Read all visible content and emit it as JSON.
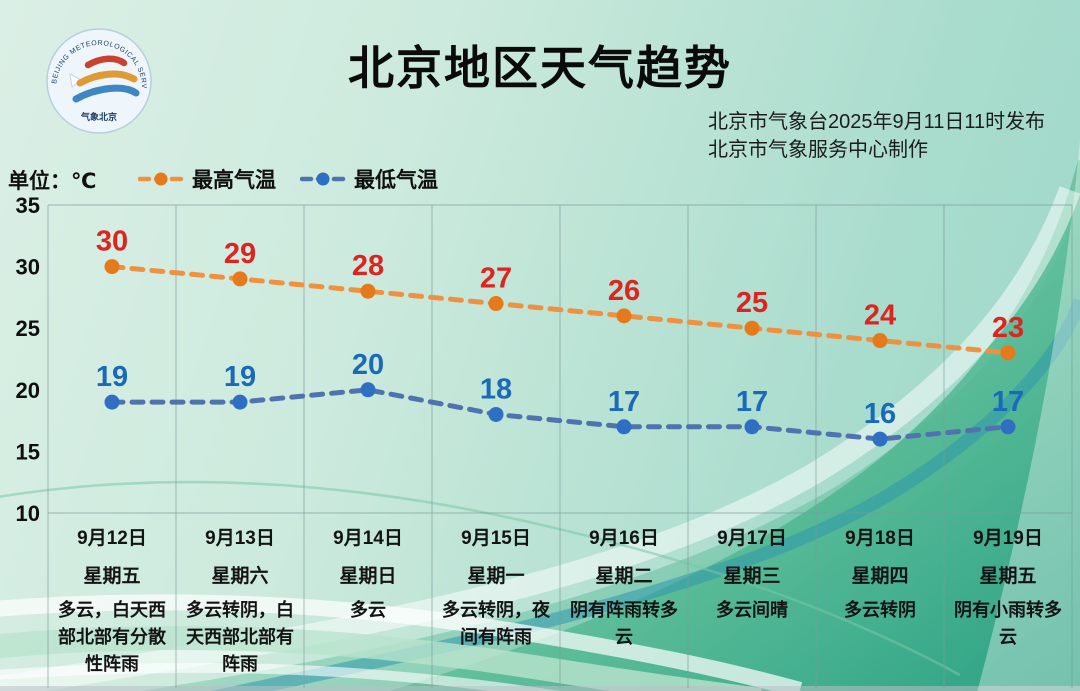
{
  "title": "北京地区天气趋势",
  "publisher": {
    "line1": "北京市气象台2025年9月11日11时发布",
    "line2": "北京市气象服务中心制作"
  },
  "unit_label": "单位：℃",
  "legend": {
    "max": {
      "label": "最高气温",
      "line_color": "#ee9140",
      "marker_color": "#e5791c"
    },
    "min": {
      "label": "最低气温",
      "line_color": "#4f73ae",
      "marker_color": "#2e6fc4"
    }
  },
  "logo": {
    "ring_text": "BEIJING METEOROLOGICAL SERVICE",
    "bottom_text": "气象北京"
  },
  "chart_data": {
    "type": "line",
    "categories": [
      "9月12日",
      "9月13日",
      "9月14日",
      "9月15日",
      "9月16日",
      "9月17日",
      "9月18日",
      "9月19日"
    ],
    "weekdays": [
      "星期五",
      "星期六",
      "星期日",
      "星期一",
      "星期二",
      "星期三",
      "星期四",
      "星期五"
    ],
    "weather": [
      "多云，白天西部北部有分散性阵雨",
      "多云转阴，白天西部北部有阵雨",
      "多云",
      "多云转阴，夜间有阵雨",
      "阴有阵雨转多云",
      "多云间晴",
      "多云转阴",
      "阴有小雨转多云"
    ],
    "series": [
      {
        "name": "最高气温",
        "values": [
          30,
          29,
          28,
          27,
          26,
          25,
          24,
          23
        ],
        "line_color": "#ee9140",
        "marker_color": "#e5791c",
        "label_color": "#dd2420"
      },
      {
        "name": "最低气温",
        "values": [
          19,
          19,
          20,
          18,
          17,
          17,
          16,
          17
        ],
        "line_color": "#4f73ae",
        "marker_color": "#2e6fc4",
        "label_color": "#1a6ab8"
      }
    ],
    "ylabel": "单位：℃",
    "ylim": [
      10,
      35
    ],
    "yticks": [
      35,
      30,
      25,
      20,
      15,
      10
    ],
    "grid": "vertical-only",
    "legend_position": "top-left"
  }
}
